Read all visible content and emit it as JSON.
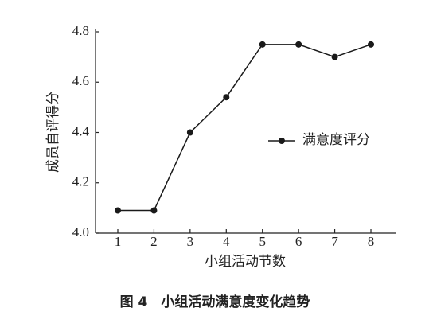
{
  "chart_data": {
    "type": "line",
    "x_label": "小组活动节数",
    "y_label": "成员自评得分",
    "caption": "图 4　小组活动满意度变化趋势",
    "categories": [
      "1",
      "2",
      "3",
      "4",
      "5",
      "6",
      "7",
      "8"
    ],
    "series": [
      {
        "name": "满意度评分",
        "color": "#1a1a1a",
        "values": [
          4.09,
          4.09,
          4.4,
          4.54,
          4.75,
          4.75,
          4.7,
          4.75
        ]
      }
    ],
    "ylim": [
      4.0,
      4.8
    ],
    "yticks": [
      {
        "value": 4.0,
        "label": "4.0"
      },
      4.2,
      4.4,
      4.6,
      4.8
    ],
    "legend": "right",
    "grid": false
  }
}
